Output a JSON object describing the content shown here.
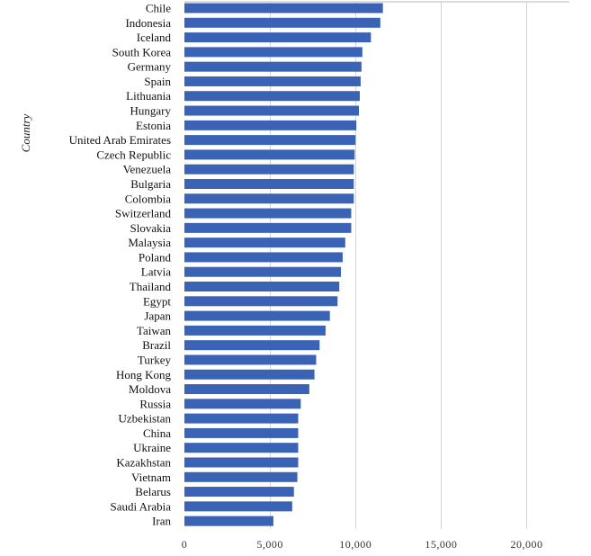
{
  "chart_data": {
    "type": "bar",
    "orientation": "horizontal",
    "title": "",
    "xlabel": "",
    "ylabel": "Country",
    "xlim": [
      0,
      22500
    ],
    "xticks": [
      0,
      5000,
      10000,
      15000,
      20000
    ],
    "xtick_labels": [
      "0",
      "5,000",
      "10,000",
      "15,000",
      "20,000"
    ],
    "grid": true,
    "legend": false,
    "bar_color": "#3a62b5",
    "categories": [
      "Chile",
      "Indonesia",
      "Iceland",
      "South Korea",
      "Germany",
      "Spain",
      "Lithuania",
      "Hungary",
      "Estonia",
      "United Arab Emirates",
      "Czech Republic",
      "Venezuela",
      "Bulgaria",
      "Colombia",
      "Switzerland",
      "Slovakia",
      "Malaysia",
      "Poland",
      "Latvia",
      "Thailand",
      "Egypt",
      "Japan",
      "Taiwan",
      "Brazil",
      "Turkey",
      "Hong Kong",
      "Moldova",
      "Russia",
      "Uzbekistan",
      "China",
      "Ukraine",
      "Kazakhstan",
      "Vietnam",
      "Belarus",
      "Saudi Arabia",
      "Iran"
    ],
    "values": [
      11600,
      11450,
      10900,
      10400,
      10350,
      10300,
      10250,
      10200,
      10050,
      10000,
      9950,
      9900,
      9900,
      9900,
      9750,
      9750,
      9400,
      9250,
      9150,
      9050,
      8950,
      8500,
      8250,
      7900,
      7700,
      7600,
      7300,
      6800,
      6650,
      6650,
      6650,
      6650,
      6600,
      6400,
      6300,
      5200
    ]
  }
}
